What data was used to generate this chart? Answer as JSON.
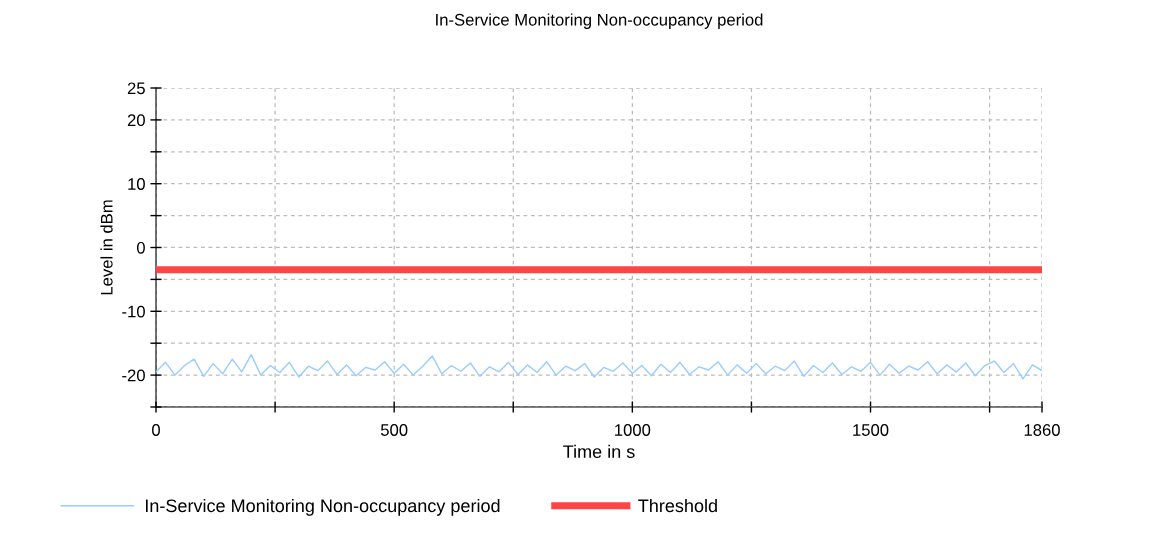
{
  "chart_data": {
    "type": "line",
    "title": "In-Service Monitoring Non-occupancy period",
    "xlabel": "Time in s",
    "ylabel": "Level in dBm",
    "series": [
      {
        "name": "In-Service Monitoring Non-occupancy period",
        "color": "#99ccff",
        "x": [
          0,
          20,
          40,
          60,
          80,
          100,
          120,
          140,
          160,
          180,
          200,
          220,
          240,
          260,
          280,
          300,
          320,
          340,
          360,
          380,
          400,
          420,
          440,
          460,
          480,
          500,
          520,
          540,
          560,
          580,
          600,
          620,
          640,
          660,
          680,
          700,
          720,
          740,
          760,
          780,
          800,
          820,
          840,
          860,
          880,
          900,
          920,
          940,
          960,
          980,
          1000,
          1020,
          1040,
          1060,
          1080,
          1100,
          1120,
          1140,
          1160,
          1180,
          1200,
          1220,
          1240,
          1260,
          1280,
          1300,
          1320,
          1340,
          1360,
          1380,
          1400,
          1420,
          1440,
          1460,
          1480,
          1500,
          1520,
          1540,
          1560,
          1580,
          1600,
          1620,
          1640,
          1660,
          1680,
          1700,
          1720,
          1740,
          1760,
          1780,
          1800,
          1820,
          1840,
          1860
        ],
        "values": [
          -19.5,
          -18,
          -20,
          -18.5,
          -17.5,
          -20.2,
          -18.2,
          -19.8,
          -17.5,
          -19.5,
          -16.8,
          -20,
          -18.5,
          -19.6,
          -18,
          -20.3,
          -18.6,
          -19.3,
          -17.8,
          -19.9,
          -18.4,
          -20.1,
          -18.8,
          -19.2,
          -17.9,
          -19.7,
          -18.3,
          -20,
          -18.6,
          -17,
          -19.8,
          -18.5,
          -19.4,
          -18.1,
          -20.2,
          -18.7,
          -19.5,
          -18,
          -19.9,
          -18.4,
          -19.6,
          -17.9,
          -20,
          -18.6,
          -19.3,
          -18.2,
          -20.3,
          -18.8,
          -19.4,
          -18.1,
          -19.7,
          -18.5,
          -20.1,
          -18.3,
          -19.6,
          -18,
          -19.9,
          -18.7,
          -19.2,
          -17.9,
          -20,
          -18.4,
          -19.7,
          -18.2,
          -19.8,
          -18.6,
          -19.3,
          -17.8,
          -20.2,
          -18.5,
          -19.6,
          -18.1,
          -19.9,
          -18.7,
          -19.4,
          -18,
          -20,
          -18.3,
          -19.7,
          -18.6,
          -19.2,
          -17.9,
          -19.8,
          -18.4,
          -19.5,
          -18.1,
          -20.1,
          -18.5,
          -17.8,
          -19.6,
          -18.2,
          -20.6,
          -18.4,
          -19.3
        ]
      },
      {
        "name": "Threshold",
        "color": "#ff4444",
        "x": [
          0,
          1860
        ],
        "values": [
          -3.5,
          -3.5
        ]
      }
    ],
    "xlim": [
      0,
      1860
    ],
    "xticks": [
      0,
      {
        "value": 250,
        "label": null
      },
      500,
      {
        "value": 750,
        "label": null
      },
      1000,
      {
        "value": 1250,
        "label": null
      },
      1500,
      {
        "value": 1750,
        "label": null
      },
      1860
    ],
    "ylim": [
      -25,
      25
    ],
    "yticks": [
      {
        "value": -25,
        "label": null
      },
      -20,
      {
        "value": -15,
        "label": null
      },
      -10,
      {
        "value": -5,
        "label": null
      },
      0,
      {
        "value": 5,
        "label": null
      },
      10,
      {
        "value": 15,
        "label": null
      },
      20,
      25
    ],
    "grid": true,
    "legend": "bottom",
    "line_style": "solid",
    "marker": "none"
  }
}
